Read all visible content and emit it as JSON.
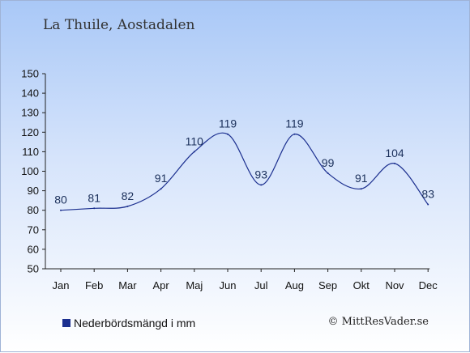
{
  "chart_data": {
    "type": "line",
    "title": "La Thuile, Aostadalen",
    "categories": [
      "Jan",
      "Feb",
      "Mar",
      "Apr",
      "Maj",
      "Jun",
      "Jul",
      "Aug",
      "Sep",
      "Okt",
      "Nov",
      "Dec"
    ],
    "series": [
      {
        "name": "Nederbördsmängd i mm",
        "values": [
          80,
          81,
          82,
          91,
          110,
          119,
          93,
          119,
          99,
          91,
          104,
          83
        ]
      }
    ],
    "ylim": [
      50,
      150
    ],
    "yticks": [
      50,
      60,
      70,
      80,
      90,
      100,
      110,
      120,
      130,
      140,
      150
    ],
    "series_color": "#1b2f8f",
    "grid": false,
    "legend": "bottom-left"
  },
  "credit": "© MittResVader.se"
}
